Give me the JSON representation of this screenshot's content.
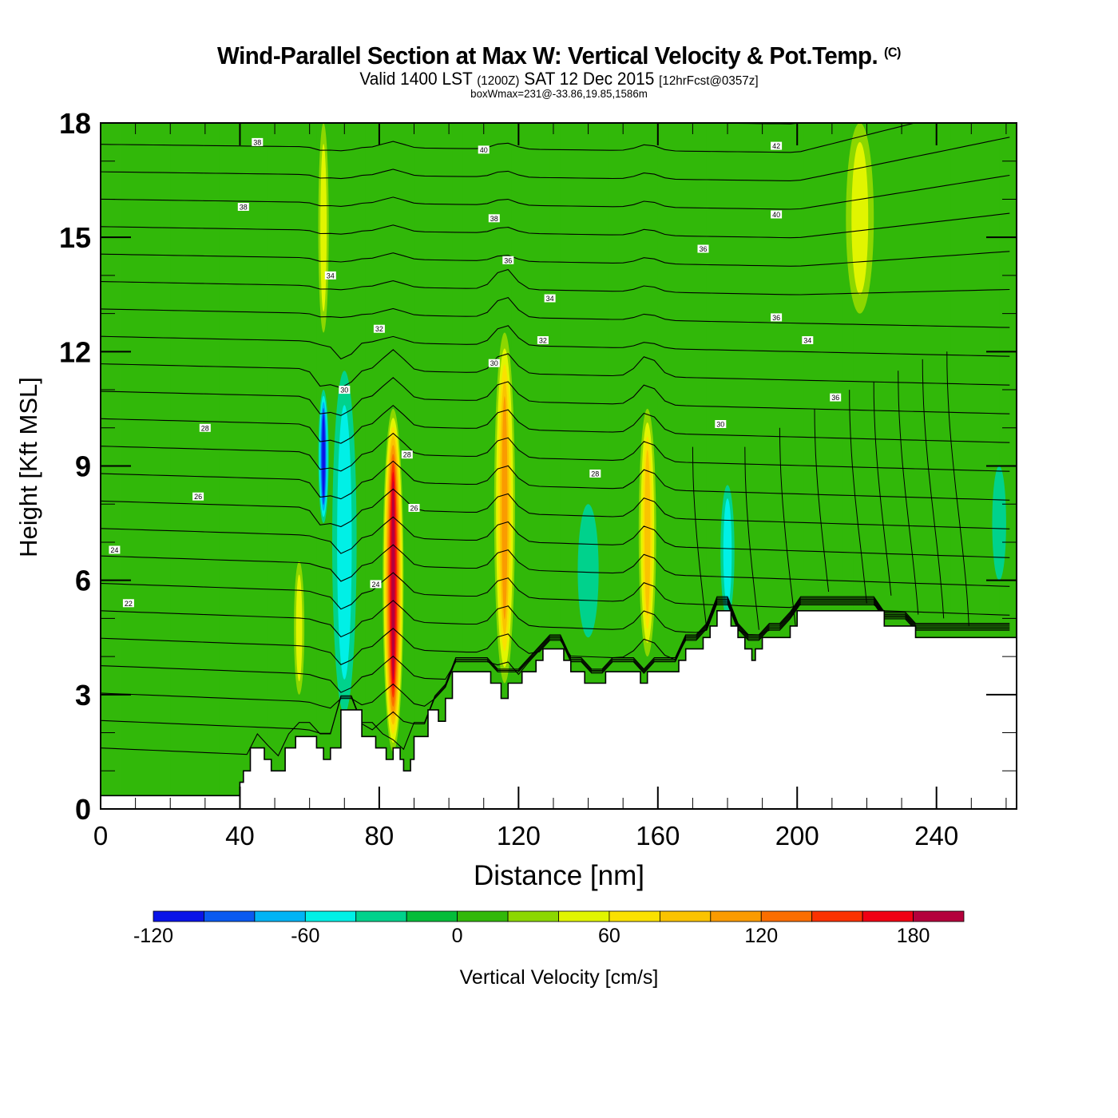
{
  "title": {
    "main": "Wind-Parallel Section at Max W: Vertical Velocity & Pot.Temp.",
    "copyright": "(C)",
    "valid_prefix": "Valid 1400 LST",
    "valid_utc": "(1200Z)",
    "valid_date": "SAT 12 Dec 2015",
    "forecast": "[12hrFcst@0357z]",
    "subtitle": "boxWmax=231@-33.86,19.85,1586m"
  },
  "chart_data": {
    "type": "heatmap",
    "title": "Wind-Parallel Section at Max W: Vertical Velocity & Pot.Temp.",
    "xlabel": "Distance [nm]",
    "ylabel": "Height [Kft MSL]",
    "xlim": [
      0,
      263
    ],
    "ylim": [
      0,
      18
    ],
    "xticks": [
      0,
      40,
      80,
      120,
      160,
      200,
      240
    ],
    "yticks": [
      0,
      3,
      6,
      9,
      12,
      15,
      18
    ],
    "colorbar": {
      "label": "Vertical Velocity [cm/s]",
      "ticks": [
        -120,
        -60,
        0,
        60,
        120,
        180
      ],
      "levels": [
        -120,
        -100,
        -80,
        -60,
        -40,
        -20,
        0,
        20,
        40,
        60,
        80,
        100,
        120,
        140,
        160,
        180,
        200
      ],
      "colors": [
        "#0a14e8",
        "#0a5af0",
        "#00b4f5",
        "#00f0e6",
        "#00d28c",
        "#05bd3a",
        "#32b80a",
        "#8cd700",
        "#e1f500",
        "#fae100",
        "#fac300",
        "#fa9b00",
        "#fa6e00",
        "#fa3200",
        "#f00014",
        "#b4003c"
      ]
    },
    "w_features": [
      {
        "x": 64,
        "top": 11.0,
        "bottom": 7.5,
        "peak": -110,
        "width": 3
      },
      {
        "x": 70,
        "top": 11.5,
        "bottom": 2.5,
        "peak": -50,
        "width": 7
      },
      {
        "x": 84,
        "top": 10.5,
        "bottom": 1.5,
        "peak": 180,
        "width": 6
      },
      {
        "x": 116,
        "top": 12.5,
        "bottom": 3.3,
        "peak": 100,
        "width": 6
      },
      {
        "x": 157,
        "top": 10.5,
        "bottom": 4.0,
        "peak": 90,
        "width": 5
      },
      {
        "x": 64,
        "top": 18.0,
        "bottom": 12.5,
        "peak": 50,
        "width": 3
      },
      {
        "x": 57,
        "top": 6.5,
        "bottom": 3.0,
        "peak": 50,
        "width": 3
      },
      {
        "x": 218,
        "top": 18.0,
        "bottom": 13.0,
        "peak": 45,
        "width": 8
      },
      {
        "x": 180,
        "top": 8.5,
        "bottom": 5.0,
        "peak": -40,
        "width": 4
      },
      {
        "x": 140,
        "top": 8.0,
        "bottom": 4.5,
        "peak": -30,
        "width": 6
      },
      {
        "x": 258,
        "top": 9.0,
        "bottom": 6.0,
        "peak": -30,
        "width": 4
      }
    ],
    "theta_contours": {
      "label": "Potential Temperature",
      "interval": 1,
      "labels": [
        {
          "value": 22,
          "x": 8,
          "y": 5.4
        },
        {
          "value": 24,
          "x": 4,
          "y": 6.8
        },
        {
          "value": 26,
          "x": 28,
          "y": 8.2
        },
        {
          "value": 28,
          "x": 30,
          "y": 10.0
        },
        {
          "value": 28,
          "x": 88,
          "y": 9.3
        },
        {
          "value": 24,
          "x": 79,
          "y": 5.9
        },
        {
          "value": 26,
          "x": 90,
          "y": 7.9
        },
        {
          "value": 28,
          "x": 142,
          "y": 8.8
        },
        {
          "value": 30,
          "x": 70,
          "y": 11.0
        },
        {
          "value": 30,
          "x": 113,
          "y": 11.7
        },
        {
          "value": 30,
          "x": 178,
          "y": 10.1
        },
        {
          "value": 32,
          "x": 80,
          "y": 12.6
        },
        {
          "value": 32,
          "x": 127,
          "y": 12.3
        },
        {
          "value": 34,
          "x": 66,
          "y": 14.0
        },
        {
          "value": 34,
          "x": 129,
          "y": 13.4
        },
        {
          "value": 34,
          "x": 203,
          "y": 12.3
        },
        {
          "value": 36,
          "x": 117,
          "y": 14.4
        },
        {
          "value": 36,
          "x": 173,
          "y": 14.7
        },
        {
          "value": 36,
          "x": 194,
          "y": 12.9
        },
        {
          "value": 36,
          "x": 211,
          "y": 10.8
        },
        {
          "value": 38,
          "x": 41,
          "y": 15.8
        },
        {
          "value": 38,
          "x": 113,
          "y": 15.5
        },
        {
          "value": 38,
          "x": 45,
          "y": 17.5
        },
        {
          "value": 40,
          "x": 110,
          "y": 17.3
        },
        {
          "value": 40,
          "x": 194,
          "y": 15.6
        },
        {
          "value": 42,
          "x": 194,
          "y": 17.4
        }
      ]
    },
    "terrain_kft": [
      [
        0,
        0.35
      ],
      [
        39,
        0.35
      ],
      [
        40,
        0.7
      ],
      [
        41,
        1.0
      ],
      [
        43,
        1.6
      ],
      [
        47,
        1.3
      ],
      [
        49,
        1.0
      ],
      [
        53,
        1.6
      ],
      [
        56,
        1.9
      ],
      [
        62,
        1.6
      ],
      [
        64,
        1.3
      ],
      [
        66,
        1.6
      ],
      [
        69,
        2.6
      ],
      [
        75,
        1.9
      ],
      [
        79,
        1.6
      ],
      [
        82,
        1.3
      ],
      [
        84,
        1.6
      ],
      [
        86,
        1.3
      ],
      [
        87,
        1.0
      ],
      [
        89,
        1.3
      ],
      [
        90,
        1.9
      ],
      [
        94,
        2.6
      ],
      [
        97,
        2.3
      ],
      [
        99,
        2.9
      ],
      [
        101,
        3.6
      ],
      [
        105,
        3.6
      ],
      [
        110,
        3.6
      ],
      [
        112,
        3.3
      ],
      [
        115,
        2.9
      ],
      [
        117,
        3.3
      ],
      [
        121,
        3.6
      ],
      [
        125,
        3.9
      ],
      [
        127,
        4.2
      ],
      [
        133,
        3.9
      ],
      [
        135,
        3.6
      ],
      [
        138,
        3.6
      ],
      [
        139,
        3.3
      ],
      [
        145,
        3.6
      ],
      [
        147,
        3.6
      ],
      [
        152,
        3.6
      ],
      [
        155,
        3.3
      ],
      [
        157,
        3.6
      ],
      [
        166,
        3.9
      ],
      [
        168,
        4.2
      ],
      [
        173,
        4.5
      ],
      [
        175,
        4.8
      ],
      [
        177,
        5.2
      ],
      [
        181,
        4.8
      ],
      [
        183,
        4.5
      ],
      [
        185,
        4.2
      ],
      [
        187,
        3.9
      ],
      [
        188,
        4.2
      ],
      [
        190,
        4.5
      ],
      [
        198,
        4.8
      ],
      [
        200,
        5.2
      ],
      [
        225,
        4.8
      ],
      [
        234,
        4.5
      ],
      [
        263,
        4.5
      ]
    ]
  }
}
